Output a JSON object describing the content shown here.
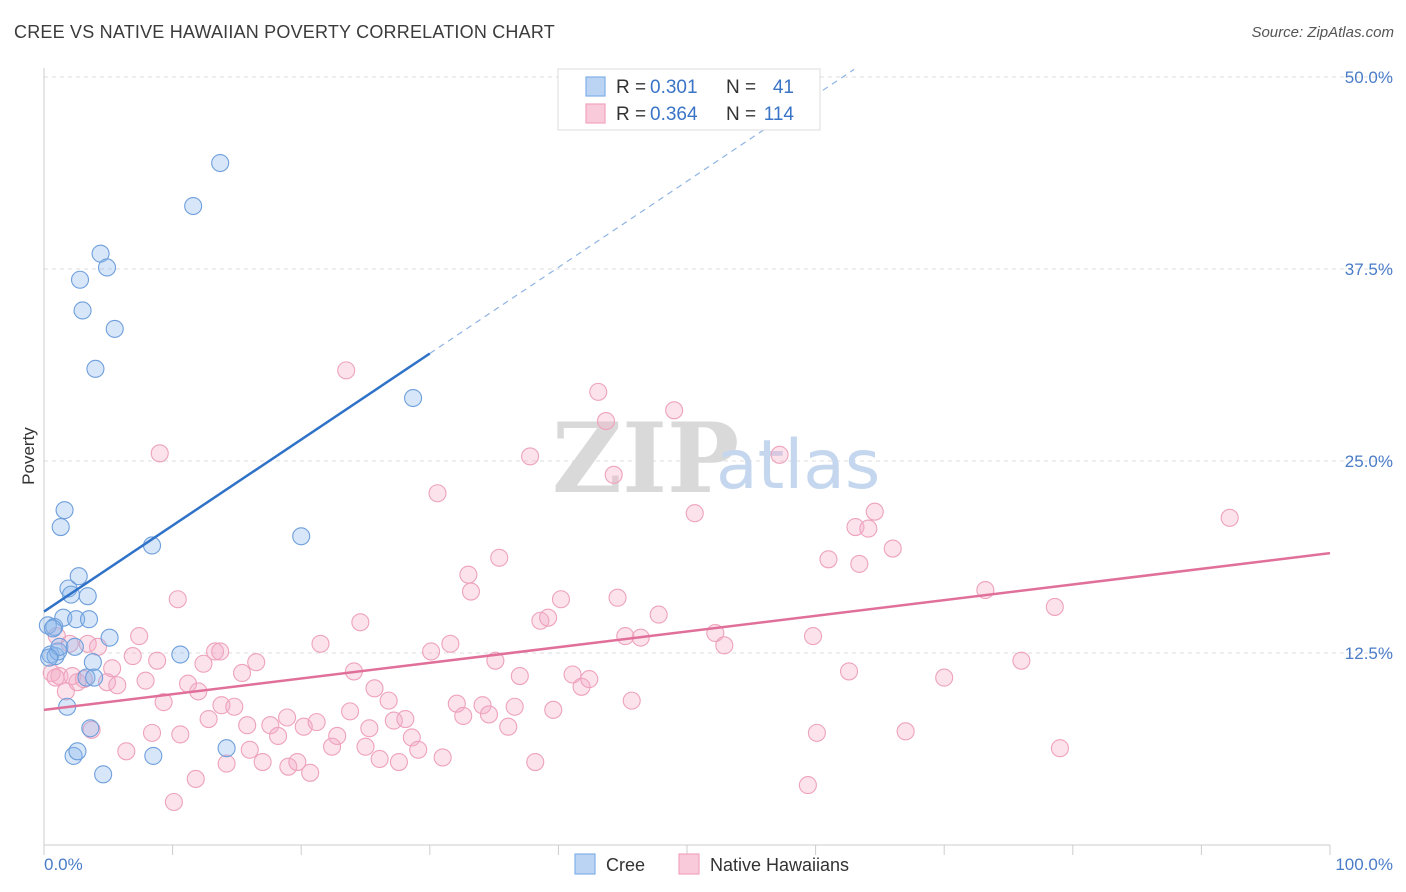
{
  "title": "CREE VS NATIVE HAWAIIAN POVERTY CORRELATION CHART",
  "source": "Source: ZipAtlas.com",
  "watermark": {
    "part1": "ZIP",
    "part2": "atlas"
  },
  "colors": {
    "cree": "#7fb0e8",
    "hawaiian": "#f0a4bf",
    "cree_line": "#2f72c8",
    "hawaiian_line": "#e0709a",
    "accent_text": "#3a74c6"
  },
  "legend": {
    "rows": [
      {
        "r_label": "R =",
        "r_value": "0.301",
        "n_label": "N =",
        "n_value": "41"
      },
      {
        "r_label": "R =",
        "r_value": "0.364",
        "n_label": "N =",
        "n_value": "114"
      }
    ]
  },
  "chart_data": {
    "type": "scatter",
    "title": "CREE VS NATIVE HAWAIIAN POVERTY CORRELATION CHART",
    "xlabel": "",
    "ylabel": "Poverty",
    "xlim": [
      0,
      100
    ],
    "ylim": [
      0,
      50
    ],
    "x_tick_labels": [
      "0.0%",
      "100.0%"
    ],
    "y_ticks": [
      12.5,
      25.0,
      37.5,
      50.0
    ],
    "y_tick_labels": [
      "12.5%",
      "25.0%",
      "37.5%",
      "50.0%"
    ],
    "series": [
      {
        "name": "Cree",
        "R": 0.301,
        "N": 41,
        "trend": {
          "x0": 0,
          "y0": 15.2,
          "x1": 30,
          "y1": 32.0,
          "dash_to_x": 63,
          "dash_to_y": 50.5
        },
        "points": [
          [
            0.3,
            14.3
          ],
          [
            0.5,
            12.4
          ],
          [
            0.8,
            14.2
          ],
          [
            0.9,
            12.3
          ],
          [
            1.1,
            12.6
          ],
          [
            1.2,
            12.9
          ],
          [
            1.3,
            20.7
          ],
          [
            1.5,
            14.8
          ],
          [
            1.6,
            21.8
          ],
          [
            1.8,
            9.0
          ],
          [
            1.9,
            16.7
          ],
          [
            2.1,
            16.3
          ],
          [
            2.3,
            5.8
          ],
          [
            2.4,
            12.9
          ],
          [
            2.5,
            14.7
          ],
          [
            2.6,
            6.1
          ],
          [
            2.7,
            17.5
          ],
          [
            2.8,
            36.8
          ],
          [
            3.0,
            34.8
          ],
          [
            3.3,
            10.9
          ],
          [
            3.4,
            16.2
          ],
          [
            3.5,
            14.7
          ],
          [
            3.6,
            7.6
          ],
          [
            3.8,
            11.9
          ],
          [
            3.9,
            10.9
          ],
          [
            4.0,
            31.0
          ],
          [
            4.4,
            38.5
          ],
          [
            4.6,
            4.6
          ],
          [
            4.9,
            37.6
          ],
          [
            5.1,
            13.5
          ],
          [
            5.5,
            33.6
          ],
          [
            8.5,
            5.8
          ],
          [
            8.4,
            19.5
          ],
          [
            10.6,
            12.4
          ],
          [
            11.6,
            41.6
          ],
          [
            13.7,
            44.4
          ],
          [
            14.2,
            6.3
          ],
          [
            20.0,
            20.1
          ],
          [
            28.7,
            29.1
          ],
          [
            0.4,
            12.2
          ],
          [
            0.7,
            14.1
          ]
        ]
      },
      {
        "name": "Native Hawaiians",
        "R": 0.364,
        "N": 114,
        "trend": {
          "x0": 0,
          "y0": 8.8,
          "x1": 100,
          "y1": 19.0
        },
        "points": [
          [
            0.6,
            11.2
          ],
          [
            1.0,
            13.6
          ],
          [
            1.2,
            11.0
          ],
          [
            1.7,
            10.0
          ],
          [
            2.2,
            11.0
          ],
          [
            2.6,
            10.6
          ],
          [
            3.1,
            10.8
          ],
          [
            3.4,
            13.1
          ],
          [
            3.7,
            7.5
          ],
          [
            4.2,
            12.9
          ],
          [
            4.9,
            10.6
          ],
          [
            5.3,
            11.5
          ],
          [
            5.7,
            10.4
          ],
          [
            6.4,
            6.1
          ],
          [
            6.9,
            12.3
          ],
          [
            7.4,
            13.6
          ],
          [
            7.9,
            10.7
          ],
          [
            8.4,
            7.3
          ],
          [
            8.8,
            12.0
          ],
          [
            9.0,
            25.5
          ],
          [
            9.3,
            9.3
          ],
          [
            10.1,
            2.8
          ],
          [
            10.4,
            16.0
          ],
          [
            10.6,
            7.2
          ],
          [
            11.2,
            10.5
          ],
          [
            11.8,
            4.3
          ],
          [
            12.4,
            11.8
          ],
          [
            12.8,
            8.2
          ],
          [
            13.3,
            12.6
          ],
          [
            13.7,
            12.6
          ],
          [
            13.8,
            9.1
          ],
          [
            14.2,
            5.3
          ],
          [
            14.8,
            9.0
          ],
          [
            15.4,
            11.2
          ],
          [
            15.8,
            7.8
          ],
          [
            16.0,
            6.2
          ],
          [
            16.5,
            11.9
          ],
          [
            17.0,
            5.4
          ],
          [
            17.6,
            7.8
          ],
          [
            18.2,
            7.1
          ],
          [
            18.9,
            8.3
          ],
          [
            19.0,
            5.1
          ],
          [
            19.7,
            5.4
          ],
          [
            20.2,
            7.7
          ],
          [
            20.7,
            4.7
          ],
          [
            21.2,
            8.0
          ],
          [
            21.5,
            13.1
          ],
          [
            22.4,
            6.4
          ],
          [
            22.8,
            7.1
          ],
          [
            23.5,
            30.9
          ],
          [
            23.8,
            8.7
          ],
          [
            24.1,
            11.3
          ],
          [
            24.6,
            14.5
          ],
          [
            25.0,
            6.4
          ],
          [
            25.3,
            7.6
          ],
          [
            25.7,
            10.2
          ],
          [
            26.1,
            5.6
          ],
          [
            26.8,
            9.4
          ],
          [
            27.2,
            8.1
          ],
          [
            27.6,
            5.4
          ],
          [
            28.1,
            8.2
          ],
          [
            28.6,
            7.0
          ],
          [
            29.1,
            6.2
          ],
          [
            30.1,
            12.6
          ],
          [
            30.6,
            22.9
          ],
          [
            31.0,
            5.7
          ],
          [
            31.6,
            13.1
          ],
          [
            32.1,
            9.2
          ],
          [
            32.6,
            8.4
          ],
          [
            33.0,
            17.6
          ],
          [
            33.2,
            16.5
          ],
          [
            34.1,
            9.1
          ],
          [
            34.6,
            8.5
          ],
          [
            35.1,
            12.0
          ],
          [
            35.4,
            18.7
          ],
          [
            36.1,
            7.7
          ],
          [
            36.6,
            9.0
          ],
          [
            37.0,
            11.0
          ],
          [
            37.8,
            25.3
          ],
          [
            38.2,
            5.4
          ],
          [
            38.6,
            14.6
          ],
          [
            39.2,
            14.8
          ],
          [
            39.6,
            8.8
          ],
          [
            40.2,
            16.0
          ],
          [
            41.1,
            11.1
          ],
          [
            41.8,
            10.3
          ],
          [
            42.4,
            10.8
          ],
          [
            43.1,
            29.5
          ],
          [
            43.7,
            27.6
          ],
          [
            44.3,
            24.1
          ],
          [
            44.6,
            16.1
          ],
          [
            45.2,
            13.6
          ],
          [
            45.7,
            9.4
          ],
          [
            46.4,
            13.5
          ],
          [
            47.8,
            15.0
          ],
          [
            49.0,
            28.3
          ],
          [
            50.6,
            21.6
          ],
          [
            52.2,
            13.8
          ],
          [
            52.9,
            13.0
          ],
          [
            57.2,
            25.4
          ],
          [
            59.4,
            3.9
          ],
          [
            59.8,
            13.6
          ],
          [
            60.1,
            7.3
          ],
          [
            61.0,
            18.6
          ],
          [
            62.6,
            11.3
          ],
          [
            63.1,
            20.7
          ],
          [
            63.4,
            18.3
          ],
          [
            64.1,
            20.6
          ],
          [
            64.6,
            21.7
          ],
          [
            66.0,
            19.3
          ],
          [
            67.0,
            7.4
          ],
          [
            70.0,
            10.9
          ],
          [
            73.2,
            16.6
          ],
          [
            76.0,
            12.0
          ],
          [
            78.6,
            15.5
          ],
          [
            79.0,
            6.3
          ],
          [
            92.2,
            21.3
          ],
          [
            0.9,
            10.9
          ],
          [
            2.0,
            13.1
          ],
          [
            12.0,
            10.0
          ]
        ]
      }
    ],
    "legend_position": "top-center",
    "bottom_legend": [
      "Cree",
      "Native Hawaiians"
    ]
  }
}
